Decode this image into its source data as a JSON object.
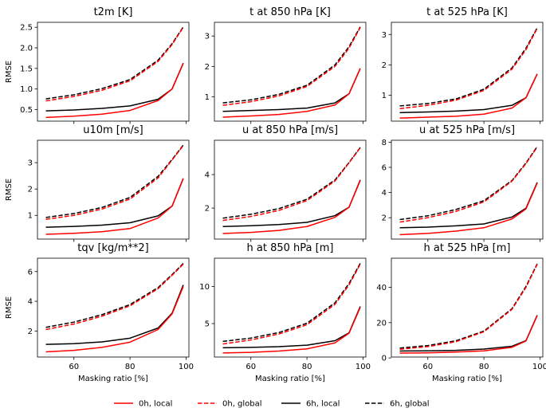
{
  "chart_data": {
    "type": "line",
    "x": [
      50,
      60,
      70,
      80,
      90,
      95,
      99
    ],
    "xlabel": "Masking ratio [%]",
    "ylabel": "RMSE",
    "xlim": [
      47,
      101
    ],
    "xticks": [
      60,
      80,
      100
    ],
    "series_styles": [
      {
        "name": "0h, local",
        "color": "#ff0000",
        "dash": "solid"
      },
      {
        "name": "0h, global",
        "color": "#ff0000",
        "dash": "dashed"
      },
      {
        "name": "6h, local",
        "color": "#000000",
        "dash": "solid"
      },
      {
        "name": "6h, global",
        "color": "#000000",
        "dash": "dashed"
      }
    ],
    "legend_position": "bottom-center",
    "panels": [
      {
        "title": "t2m [K]",
        "ylim": [
          0.22,
          2.62
        ],
        "yticks": [
          0.5,
          1.0,
          1.5,
          2.0,
          2.5
        ],
        "ytick_labels": [
          "0.5",
          "1.0",
          "1.5",
          "2.0",
          "2.5"
        ],
        "series": [
          {
            "name": "0h, local",
            "values": [
              0.31,
              0.34,
              0.39,
              0.48,
              0.72,
              1.0,
              1.63
            ]
          },
          {
            "name": "0h, global",
            "values": [
              0.71,
              0.82,
              0.97,
              1.2,
              1.67,
              2.08,
              2.5
            ]
          },
          {
            "name": "6h, local",
            "values": [
              0.47,
              0.49,
              0.53,
              0.59,
              0.75,
              1.0,
              1.63
            ]
          },
          {
            "name": "6h, global",
            "values": [
              0.76,
              0.86,
              1.01,
              1.23,
              1.7,
              2.1,
              2.51
            ]
          }
        ]
      },
      {
        "title": "t at 850 hPa [K]",
        "ylim": [
          0.2,
          3.45
        ],
        "yticks": [
          1,
          2,
          3
        ],
        "ytick_labels": [
          "1",
          "2",
          "3"
        ],
        "series": [
          {
            "name": "0h, local",
            "values": [
              0.33,
              0.37,
              0.42,
              0.52,
              0.73,
              1.1,
              1.93
            ]
          },
          {
            "name": "0h, global",
            "values": [
              0.72,
              0.84,
              1.03,
              1.34,
              2.0,
              2.6,
              3.28
            ]
          },
          {
            "name": "6h, local",
            "values": [
              0.52,
              0.55,
              0.58,
              0.63,
              0.8,
              1.1,
              1.93
            ]
          },
          {
            "name": "6h, global",
            "values": [
              0.8,
              0.9,
              1.08,
              1.38,
              2.05,
              2.65,
              3.3
            ]
          }
        ]
      },
      {
        "title": "t at 525 hPa [K]",
        "ylim": [
          0.15,
          3.4
        ],
        "yticks": [
          1,
          2,
          3
        ],
        "ytick_labels": [
          "1",
          "2",
          "3"
        ],
        "series": [
          {
            "name": "0h, local",
            "values": [
              0.25,
              0.28,
              0.31,
              0.38,
              0.58,
              0.92,
              1.7
            ]
          },
          {
            "name": "0h, global",
            "values": [
              0.56,
              0.67,
              0.84,
              1.16,
              1.86,
              2.5,
              3.2
            ]
          },
          {
            "name": "6h, local",
            "values": [
              0.43,
              0.45,
              0.48,
              0.53,
              0.67,
              0.92,
              1.7
            ]
          },
          {
            "name": "6h, global",
            "values": [
              0.65,
              0.73,
              0.88,
              1.2,
              1.9,
              2.55,
              3.22
            ]
          }
        ]
      },
      {
        "title": "u10m [m/s]",
        "ylim": [
          0.1,
          3.85
        ],
        "yticks": [
          1,
          2,
          3
        ],
        "ytick_labels": [
          "1",
          "2",
          "3"
        ],
        "series": [
          {
            "name": "0h, local",
            "values": [
              0.28,
              0.32,
              0.38,
              0.5,
              0.9,
              1.35,
              2.4
            ]
          },
          {
            "name": "0h, global",
            "values": [
              0.85,
              1.0,
              1.24,
              1.62,
              2.42,
              3.1,
              3.65
            ]
          },
          {
            "name": "6h, local",
            "values": [
              0.55,
              0.58,
              0.63,
              0.72,
              0.98,
              1.35,
              2.4
            ]
          },
          {
            "name": "6h, global",
            "values": [
              0.92,
              1.07,
              1.3,
              1.68,
              2.48,
              3.12,
              3.67
            ]
          }
        ]
      },
      {
        "title": "u at 850 hPa [m/s]",
        "ylim": [
          0.15,
          6.05
        ],
        "yticks": [
          2,
          4
        ],
        "ytick_labels": [
          "2",
          "4"
        ],
        "series": [
          {
            "name": "0h, local",
            "values": [
              0.48,
              0.55,
              0.67,
              0.9,
              1.45,
              2.05,
              3.65
            ]
          },
          {
            "name": "0h, global",
            "values": [
              1.26,
              1.5,
              1.86,
              2.45,
              3.62,
              4.7,
              5.6
            ]
          },
          {
            "name": "6h, local",
            "values": [
              0.9,
              0.95,
              1.02,
              1.15,
              1.55,
              2.05,
              3.68
            ]
          },
          {
            "name": "6h, global",
            "values": [
              1.4,
              1.63,
              1.97,
              2.53,
              3.68,
              4.72,
              5.62
            ]
          }
        ]
      },
      {
        "title": "u at 525 hPa [m/s]",
        "ylim": [
          0.3,
          8.15
        ],
        "yticks": [
          2,
          4,
          6,
          8
        ],
        "ytick_labels": [
          "2",
          "4",
          "6",
          "8"
        ],
        "series": [
          {
            "name": "0h, local",
            "values": [
              0.65,
              0.75,
              0.93,
              1.2,
              1.9,
              2.7,
              4.75
            ]
          },
          {
            "name": "0h, global",
            "values": [
              1.65,
              2.0,
              2.5,
              3.25,
              4.9,
              6.3,
              7.6
            ]
          },
          {
            "name": "6h, local",
            "values": [
              1.2,
              1.25,
              1.35,
              1.5,
              2.05,
              2.75,
              4.8
            ]
          },
          {
            "name": "6h, global",
            "values": [
              1.85,
              2.15,
              2.65,
              3.35,
              4.95,
              6.35,
              7.65
            ]
          }
        ]
      },
      {
        "title": "tqv [kg/m**2]",
        "ylim": [
          0.25,
          6.9
        ],
        "yticks": [
          2,
          4,
          6
        ],
        "ytick_labels": [
          "2",
          "4",
          "6"
        ],
        "series": [
          {
            "name": "0h, local",
            "values": [
              0.6,
              0.7,
              0.9,
              1.25,
              2.1,
              3.15,
              5.0
            ]
          },
          {
            "name": "0h, global",
            "values": [
              2.1,
              2.47,
              3.0,
              3.7,
              4.85,
              5.75,
              6.5
            ]
          },
          {
            "name": "6h, local",
            "values": [
              1.1,
              1.15,
              1.27,
              1.52,
              2.2,
              3.2,
              5.1
            ]
          },
          {
            "name": "6h, global",
            "values": [
              2.25,
              2.6,
              3.1,
              3.78,
              4.92,
              5.8,
              6.55
            ]
          }
        ]
      },
      {
        "title": "h at 850 hPa [m]",
        "ylim": [
          0.5,
          13.8
        ],
        "yticks": [
          5,
          10
        ],
        "ytick_labels": [
          "5",
          "10"
        ],
        "series": [
          {
            "name": "0h, local",
            "values": [
              1.05,
              1.13,
              1.3,
              1.6,
              2.4,
              3.7,
              7.2
            ]
          },
          {
            "name": "0h, global",
            "values": [
              2.25,
              2.8,
              3.6,
              4.85,
              7.6,
              10.2,
              13.0
            ]
          },
          {
            "name": "6h, local",
            "values": [
              1.75,
              1.8,
              1.9,
              2.1,
              2.7,
              3.75,
              7.3
            ]
          },
          {
            "name": "6h, global",
            "values": [
              2.6,
              3.05,
              3.8,
              5.05,
              7.8,
              10.4,
              13.1
            ]
          }
        ]
      },
      {
        "title": "h at 525 hPa [m]",
        "ylim": [
          0.5,
          56.5
        ],
        "yticks": [
          0,
          20,
          40
        ],
        "ytick_labels": [
          "0",
          "20",
          "40"
        ],
        "series": [
          {
            "name": "0h, local",
            "values": [
              2.7,
              2.9,
              3.3,
              4.0,
              6.0,
              9.6,
              24.0
            ]
          },
          {
            "name": "0h, global",
            "values": [
              4.9,
              6.4,
              9.2,
              14.8,
              27.5,
              40.0,
              53.0
            ]
          },
          {
            "name": "6h, local",
            "values": [
              3.9,
              4.0,
              4.3,
              5.0,
              6.6,
              9.8,
              24.2
            ]
          },
          {
            "name": "6h, global",
            "values": [
              5.6,
              7.0,
              9.7,
              15.2,
              27.9,
              40.5,
              53.3
            ]
          }
        ]
      }
    ]
  }
}
